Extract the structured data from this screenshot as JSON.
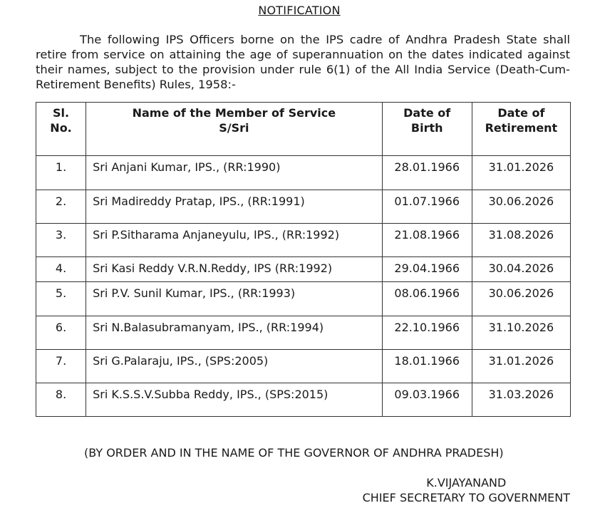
{
  "title": "NOTIFICATION",
  "intro": "The following IPS Officers borne on the IPS cadre of Andhra Pradesh State shall retire from service on attaining the age of superannuation on the dates indicated against their names, subject to the provision under rule 6(1) of the All India Service (Death-Cum-Retirement Benefits) Rules, 1958:-",
  "table": {
    "headers": {
      "sl_1": "Sl.",
      "sl_2": "No.",
      "name_1": "Name of the Member of Service",
      "name_2": "S/Sri",
      "dob_1": "Date of",
      "dob_2": "Birth",
      "dor_1": "Date of",
      "dor_2": "Retirement"
    },
    "rows": [
      {
        "sl": "1.",
        "name": "Sri Anjani Kumar, IPS., (RR:1990)",
        "dob": "28.01.1966",
        "dor": "31.01.2026"
      },
      {
        "sl": "2.",
        "name": "Sri Madireddy Pratap, IPS., (RR:1991)",
        "dob": "01.07.1966",
        "dor": "30.06.2026"
      },
      {
        "sl": "3.",
        "name": "Sri P.Sitharama Anjaneyulu, IPS., (RR:1992)",
        "dob": "21.08.1966",
        "dor": "31.08.2026"
      },
      {
        "sl": "4.",
        "name": "Sri Kasi Reddy V.R.N.Reddy, IPS (RR:1992)",
        "dob": "29.04.1966",
        "dor": "30.04.2026"
      },
      {
        "sl": "5.",
        "name": "Sri P.V. Sunil Kumar, IPS., (RR:1993)",
        "dob": "08.06.1966",
        "dor": "30.06.2026"
      },
      {
        "sl": "6.",
        "name": "Sri N.Balasubramanyam, IPS., (RR:1994)",
        "dob": "22.10.1966",
        "dor": "31.10.2026"
      },
      {
        "sl": "7.",
        "name": "Sri G.Palaraju, IPS., (SPS:2005)",
        "dob": "18.01.1966",
        "dor": "31.01.2026"
      },
      {
        "sl": "8.",
        "name": "Sri K.S.S.V.Subba Reddy, IPS., (SPS:2015)",
        "dob": "09.03.1966",
        "dor": "31.03.2026"
      }
    ]
  },
  "order_line": "(BY ORDER AND IN THE NAME OF THE GOVERNOR OF ANDHRA PRADESH)",
  "signatory": {
    "name": "K.VIJAYANAND",
    "designation": "CHIEF SECRETARY TO GOVERNMENT"
  }
}
